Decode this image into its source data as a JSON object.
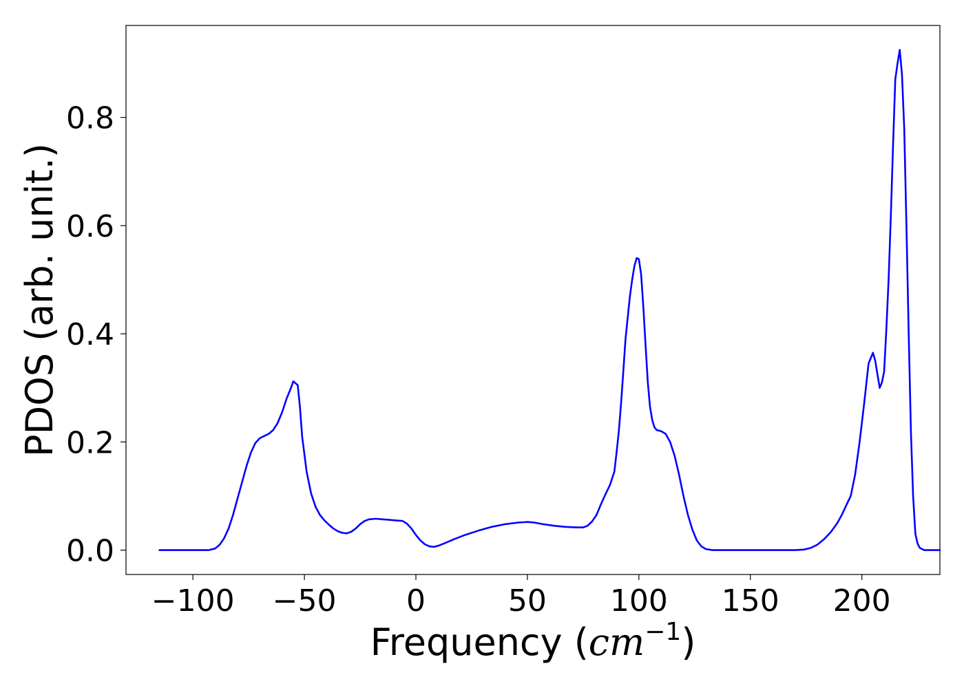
{
  "chart_data": {
    "type": "line",
    "xlabel": "Frequency (cm^-1)",
    "xlabel_parts": {
      "prefix": "Frequency (",
      "unit": "cm",
      "exponent": "−1",
      "suffix": ")"
    },
    "ylabel": "PDOS (arb. unit.)",
    "xlim": [
      -130,
      235
    ],
    "ylim": [
      -0.045,
      0.97
    ],
    "xticks": [
      -100,
      -50,
      0,
      50,
      100,
      150,
      200
    ],
    "xtick_labels": [
      "−100",
      "−50",
      "0",
      "50",
      "100",
      "150",
      "200"
    ],
    "yticks": [
      0.0,
      0.2,
      0.4,
      0.6,
      0.8
    ],
    "ytick_labels": [
      "0.0",
      "0.2",
      "0.4",
      "0.6",
      "0.8"
    ],
    "grid": false,
    "series": [
      {
        "color": "#0000ff",
        "points": [
          [
            -115,
            0.0
          ],
          [
            -100,
            0.0
          ],
          [
            -93,
            0.0
          ],
          [
            -90,
            0.003
          ],
          [
            -88,
            0.01
          ],
          [
            -86,
            0.022
          ],
          [
            -84,
            0.04
          ],
          [
            -82,
            0.065
          ],
          [
            -80,
            0.095
          ],
          [
            -78,
            0.125
          ],
          [
            -76,
            0.155
          ],
          [
            -74,
            0.18
          ],
          [
            -72,
            0.198
          ],
          [
            -70,
            0.207
          ],
          [
            -68,
            0.211
          ],
          [
            -66,
            0.215
          ],
          [
            -64,
            0.222
          ],
          [
            -62,
            0.235
          ],
          [
            -60,
            0.255
          ],
          [
            -58,
            0.28
          ],
          [
            -56,
            0.3
          ],
          [
            -55,
            0.312
          ],
          [
            -53,
            0.305
          ],
          [
            -52,
            0.265
          ],
          [
            -51,
            0.21
          ],
          [
            -49,
            0.145
          ],
          [
            -47,
            0.105
          ],
          [
            -45,
            0.08
          ],
          [
            -43,
            0.065
          ],
          [
            -41,
            0.055
          ],
          [
            -39,
            0.047
          ],
          [
            -37,
            0.04
          ],
          [
            -35,
            0.035
          ],
          [
            -33,
            0.032
          ],
          [
            -31,
            0.031
          ],
          [
            -29,
            0.034
          ],
          [
            -27,
            0.04
          ],
          [
            -25,
            0.048
          ],
          [
            -23,
            0.054
          ],
          [
            -21,
            0.057
          ],
          [
            -18,
            0.058
          ],
          [
            -15,
            0.057
          ],
          [
            -12,
            0.056
          ],
          [
            -9,
            0.055
          ],
          [
            -6,
            0.054
          ],
          [
            -4,
            0.049
          ],
          [
            -2,
            0.04
          ],
          [
            0,
            0.028
          ],
          [
            2,
            0.018
          ],
          [
            4,
            0.011
          ],
          [
            6,
            0.007
          ],
          [
            8,
            0.006
          ],
          [
            10,
            0.008
          ],
          [
            13,
            0.013
          ],
          [
            17,
            0.02
          ],
          [
            22,
            0.028
          ],
          [
            28,
            0.036
          ],
          [
            34,
            0.043
          ],
          [
            40,
            0.048
          ],
          [
            46,
            0.051
          ],
          [
            50,
            0.052
          ],
          [
            53,
            0.051
          ],
          [
            57,
            0.048
          ],
          [
            62,
            0.045
          ],
          [
            67,
            0.043
          ],
          [
            72,
            0.042
          ],
          [
            75,
            0.042
          ],
          [
            77,
            0.045
          ],
          [
            79,
            0.053
          ],
          [
            81,
            0.065
          ],
          [
            83,
            0.085
          ],
          [
            85,
            0.103
          ],
          [
            87,
            0.12
          ],
          [
            89,
            0.145
          ],
          [
            90,
            0.18
          ],
          [
            91,
            0.22
          ],
          [
            92,
            0.27
          ],
          [
            93,
            0.33
          ],
          [
            94,
            0.39
          ],
          [
            95,
            0.43
          ],
          [
            96,
            0.47
          ],
          [
            97,
            0.5
          ],
          [
            98,
            0.525
          ],
          [
            99,
            0.54
          ],
          [
            100,
            0.538
          ],
          [
            101,
            0.51
          ],
          [
            102,
            0.45
          ],
          [
            103,
            0.38
          ],
          [
            104,
            0.31
          ],
          [
            105,
            0.265
          ],
          [
            106,
            0.24
          ],
          [
            107,
            0.227
          ],
          [
            108,
            0.222
          ],
          [
            110,
            0.22
          ],
          [
            112,
            0.215
          ],
          [
            114,
            0.2
          ],
          [
            116,
            0.175
          ],
          [
            118,
            0.14
          ],
          [
            120,
            0.1
          ],
          [
            122,
            0.065
          ],
          [
            124,
            0.038
          ],
          [
            126,
            0.018
          ],
          [
            128,
            0.007
          ],
          [
            130,
            0.002
          ],
          [
            133,
            0.0
          ],
          [
            150,
            0.0
          ],
          [
            170,
            0.0
          ],
          [
            174,
            0.001
          ],
          [
            177,
            0.004
          ],
          [
            180,
            0.01
          ],
          [
            183,
            0.02
          ],
          [
            186,
            0.033
          ],
          [
            189,
            0.05
          ],
          [
            191,
            0.065
          ],
          [
            193,
            0.083
          ],
          [
            195,
            0.1
          ],
          [
            197,
            0.14
          ],
          [
            199,
            0.2
          ],
          [
            201,
            0.27
          ],
          [
            203,
            0.345
          ],
          [
            205,
            0.365
          ],
          [
            206,
            0.35
          ],
          [
            207,
            0.325
          ],
          [
            208,
            0.3
          ],
          [
            209,
            0.31
          ],
          [
            210,
            0.33
          ],
          [
            211,
            0.41
          ],
          [
            212,
            0.5
          ],
          [
            213,
            0.62
          ],
          [
            214,
            0.75
          ],
          [
            215,
            0.87
          ],
          [
            216,
            0.9
          ],
          [
            217,
            0.925
          ],
          [
            218,
            0.88
          ],
          [
            219,
            0.78
          ],
          [
            220,
            0.6
          ],
          [
            221,
            0.4
          ],
          [
            222,
            0.22
          ],
          [
            223,
            0.1
          ],
          [
            224,
            0.03
          ],
          [
            225,
            0.012
          ],
          [
            226,
            0.004
          ],
          [
            228,
            0.0
          ],
          [
            235,
            0.0
          ]
        ]
      }
    ]
  }
}
